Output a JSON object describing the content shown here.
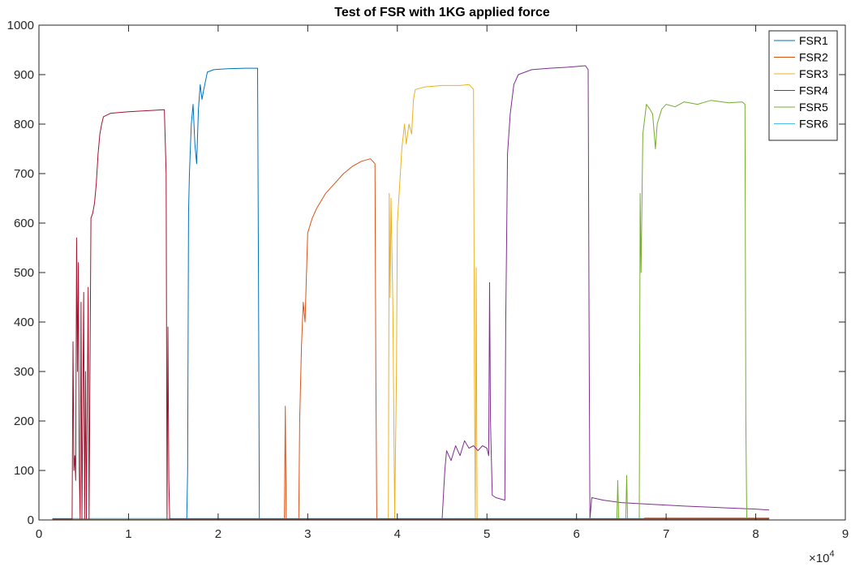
{
  "chart_data": {
    "type": "line",
    "title": "Test of FSR with 1KG applied force",
    "xlabel": "",
    "ylabel": "",
    "x_exponent_label": "×10",
    "x_exponent_power": "4",
    "xlim": [
      0,
      9
    ],
    "ylim": [
      0,
      1000
    ],
    "xticks": [
      0,
      1,
      2,
      3,
      4,
      5,
      6,
      7,
      8,
      9
    ],
    "yticks": [
      0,
      100,
      200,
      300,
      400,
      500,
      600,
      700,
      800,
      900,
      1000
    ],
    "grid": false,
    "legend_position": "top-right",
    "series": [
      {
        "name": "FSR1",
        "color": "#0072BD",
        "points": [
          [
            0.15,
            2
          ],
          [
            1.65,
            2
          ],
          [
            1.66,
            100
          ],
          [
            1.67,
            620
          ],
          [
            1.68,
            700
          ],
          [
            1.7,
            800
          ],
          [
            1.72,
            840
          ],
          [
            1.74,
            760
          ],
          [
            1.76,
            720
          ],
          [
            1.78,
            830
          ],
          [
            1.8,
            880
          ],
          [
            1.82,
            850
          ],
          [
            1.84,
            870
          ],
          [
            1.88,
            905
          ],
          [
            1.95,
            910
          ],
          [
            2.1,
            912
          ],
          [
            2.3,
            913
          ],
          [
            2.44,
            913
          ],
          [
            2.45,
            500
          ],
          [
            2.46,
            2
          ],
          [
            8.15,
            2
          ]
        ]
      },
      {
        "name": "FSR2",
        "color": "#D95319",
        "points": [
          [
            0.15,
            2
          ],
          [
            2.74,
            2
          ],
          [
            2.75,
            230
          ],
          [
            2.76,
            2
          ],
          [
            2.9,
            2
          ],
          [
            2.91,
            200
          ],
          [
            2.93,
            350
          ],
          [
            2.95,
            440
          ],
          [
            2.97,
            400
          ],
          [
            3.0,
            580
          ],
          [
            3.05,
            610
          ],
          [
            3.1,
            630
          ],
          [
            3.2,
            660
          ],
          [
            3.3,
            680
          ],
          [
            3.4,
            700
          ],
          [
            3.5,
            715
          ],
          [
            3.6,
            725
          ],
          [
            3.7,
            730
          ],
          [
            3.75,
            720
          ],
          [
            3.76,
            300
          ],
          [
            3.77,
            2
          ],
          [
            6.75,
            2
          ],
          [
            6.76,
            4
          ],
          [
            8.15,
            4
          ]
        ]
      },
      {
        "name": "FSR3",
        "color": "#EDB120",
        "points": [
          [
            0.15,
            2
          ],
          [
            3.9,
            2
          ],
          [
            3.91,
            660
          ],
          [
            3.92,
            450
          ],
          [
            3.93,
            650
          ],
          [
            3.95,
            430
          ],
          [
            3.97,
            2
          ],
          [
            3.99,
            300
          ],
          [
            4.0,
            600
          ],
          [
            4.05,
            750
          ],
          [
            4.08,
            800
          ],
          [
            4.1,
            760
          ],
          [
            4.13,
            800
          ],
          [
            4.16,
            780
          ],
          [
            4.18,
            850
          ],
          [
            4.2,
            870
          ],
          [
            4.3,
            875
          ],
          [
            4.5,
            878
          ],
          [
            4.7,
            878
          ],
          [
            4.8,
            880
          ],
          [
            4.85,
            870
          ],
          [
            4.86,
            300
          ],
          [
            4.87,
            2
          ],
          [
            4.88,
            510
          ],
          [
            4.89,
            2
          ],
          [
            8.15,
            2
          ]
        ]
      },
      {
        "name": "FSR4",
        "color": "#7E2F8E",
        "points": [
          [
            0.15,
            2
          ],
          [
            4.5,
            2
          ],
          [
            4.53,
            100
          ],
          [
            4.55,
            140
          ],
          [
            4.6,
            120
          ],
          [
            4.65,
            150
          ],
          [
            4.7,
            130
          ],
          [
            4.75,
            160
          ],
          [
            4.8,
            145
          ],
          [
            4.85,
            150
          ],
          [
            4.9,
            140
          ],
          [
            4.95,
            150
          ],
          [
            5.0,
            145
          ],
          [
            5.02,
            130
          ],
          [
            5.03,
            480
          ],
          [
            5.04,
            200
          ],
          [
            5.06,
            50
          ],
          [
            5.1,
            45
          ],
          [
            5.2,
            40
          ],
          [
            5.21,
            400
          ],
          [
            5.23,
            740
          ],
          [
            5.26,
            820
          ],
          [
            5.3,
            880
          ],
          [
            5.35,
            900
          ],
          [
            5.5,
            910
          ],
          [
            5.7,
            913
          ],
          [
            5.9,
            915
          ],
          [
            6.1,
            918
          ],
          [
            6.13,
            910
          ],
          [
            6.14,
            400
          ],
          [
            6.15,
            2
          ],
          [
            6.17,
            45
          ],
          [
            6.3,
            40
          ],
          [
            6.5,
            35
          ],
          [
            6.8,
            32
          ],
          [
            7.2,
            28
          ],
          [
            7.6,
            25
          ],
          [
            8.0,
            22
          ],
          [
            8.15,
            20
          ]
        ]
      },
      {
        "name": "FSR5",
        "color": "#77AC30",
        "points": [
          [
            0.15,
            2
          ],
          [
            6.45,
            2
          ],
          [
            6.46,
            80
          ],
          [
            6.47,
            2
          ],
          [
            6.55,
            2
          ],
          [
            6.56,
            90
          ],
          [
            6.57,
            2
          ],
          [
            6.7,
            2
          ],
          [
            6.71,
            660
          ],
          [
            6.72,
            500
          ],
          [
            6.74,
            780
          ],
          [
            6.78,
            840
          ],
          [
            6.82,
            830
          ],
          [
            6.85,
            820
          ],
          [
            6.88,
            750
          ],
          [
            6.9,
            800
          ],
          [
            6.95,
            830
          ],
          [
            7.0,
            840
          ],
          [
            7.1,
            835
          ],
          [
            7.2,
            845
          ],
          [
            7.35,
            840
          ],
          [
            7.5,
            848
          ],
          [
            7.7,
            843
          ],
          [
            7.85,
            845
          ],
          [
            7.88,
            840
          ],
          [
            7.89,
            200
          ],
          [
            7.9,
            2
          ],
          [
            8.15,
            2
          ]
        ]
      },
      {
        "name": "FSR6",
        "color": "#4DBEEE",
        "points": [
          [
            0.15,
            3
          ],
          [
            8.15,
            3
          ]
        ]
      },
      {
        "name": "",
        "color": "#A2142F",
        "points": [
          [
            0.15,
            2
          ],
          [
            0.37,
            2
          ],
          [
            0.38,
            360
          ],
          [
            0.39,
            100
          ],
          [
            0.4,
            130
          ],
          [
            0.41,
            80
          ],
          [
            0.42,
            570
          ],
          [
            0.43,
            300
          ],
          [
            0.44,
            520
          ],
          [
            0.45,
            100
          ],
          [
            0.46,
            2
          ],
          [
            0.47,
            440
          ],
          [
            0.48,
            2
          ],
          [
            0.5,
            460
          ],
          [
            0.51,
            2
          ],
          [
            0.52,
            300
          ],
          [
            0.53,
            2
          ],
          [
            0.55,
            470
          ],
          [
            0.56,
            2
          ],
          [
            0.58,
            610
          ],
          [
            0.6,
            620
          ],
          [
            0.62,
            640
          ],
          [
            0.64,
            680
          ],
          [
            0.66,
            740
          ],
          [
            0.68,
            780
          ],
          [
            0.7,
            800
          ],
          [
            0.72,
            815
          ],
          [
            0.8,
            822
          ],
          [
            1.0,
            825
          ],
          [
            1.2,
            827
          ],
          [
            1.4,
            829
          ],
          [
            1.42,
            700
          ],
          [
            1.43,
            2
          ],
          [
            1.44,
            390
          ],
          [
            1.45,
            80
          ],
          [
            1.46,
            2
          ],
          [
            8.15,
            2
          ]
        ]
      }
    ]
  }
}
